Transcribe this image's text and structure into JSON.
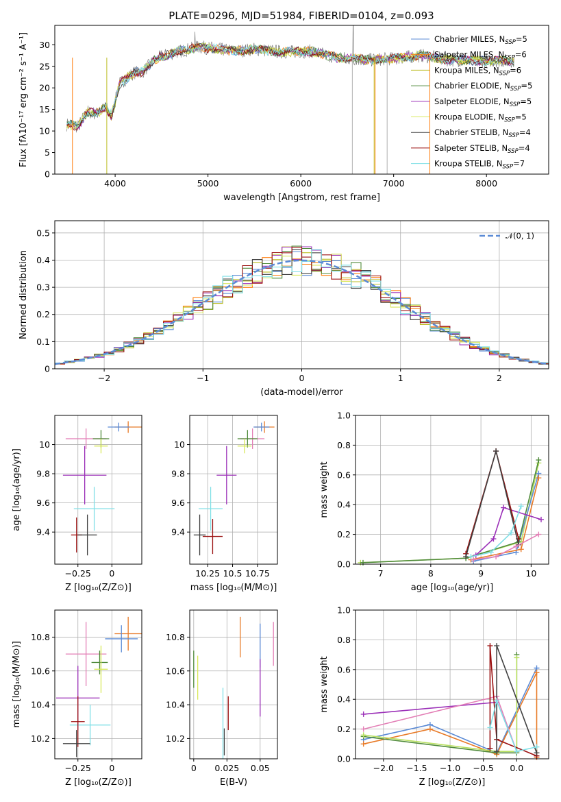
{
  "title": "PLATE=0296, MJD=51984, FIBERID=0104, z=0.093",
  "colors": {
    "grey": "#7f7f7f",
    "orange": "#ff7f0e",
    "olive": "#bcbd22",
    "blue": "#5b8bd6",
    "purple": "#9b30b8",
    "yellow": "#d8e85a",
    "dark": "#404040",
    "red": "#9b1111",
    "cyan": "#7fdfe6",
    "green": "#4f8a3a",
    "pink": "#e37fb6",
    "orange2": "#e87a27",
    "lightgreen": "#b8e060"
  },
  "chart_data": [
    {
      "id": "spectrum",
      "type": "line",
      "title": "PLATE=0296, MJD=51984, FIBERID=0104, z=0.093",
      "xlabel": "wavelength [Angstrom, rest frame]",
      "ylabel": "Flux [fλ10⁻¹⁷ erg cm⁻² s⁻¹ A⁻¹]",
      "xlim": [
        3350,
        8670
      ],
      "ylim": [
        0,
        34.5
      ],
      "xticks": [
        4000,
        5000,
        6000,
        7000,
        8000
      ],
      "yticks": [
        0,
        5,
        10,
        15,
        20,
        25,
        30
      ],
      "grid": false,
      "legend": "top-right",
      "spectrum_knots": [
        [
          3500,
          11.5
        ],
        [
          3600,
          11
        ],
        [
          3700,
          14.5
        ],
        [
          3800,
          14
        ],
        [
          3900,
          15.5
        ],
        [
          3960,
          13.5
        ],
        [
          4050,
          21
        ],
        [
          4200,
          23.5
        ],
        [
          4300,
          23.8
        ],
        [
          4400,
          26
        ],
        [
          4500,
          27.3
        ],
        [
          4700,
          28.5
        ],
        [
          4900,
          29.5
        ],
        [
          5100,
          29
        ],
        [
          5300,
          28.5
        ],
        [
          5500,
          29
        ],
        [
          5800,
          28.3
        ],
        [
          6100,
          28.5
        ],
        [
          6400,
          27
        ],
        [
          6700,
          26.5
        ],
        [
          7000,
          26.8
        ],
        [
          7300,
          27.5
        ],
        [
          7600,
          26.5
        ],
        [
          8000,
          26.3
        ],
        [
          8300,
          26.3
        ]
      ],
      "series": [
        {
          "name": "Chabrier MILES, N",
          "sub": "SSP",
          "suffix": "=5",
          "color": "#5b8bd6"
        },
        {
          "name": "Salpeter MILES, N",
          "sub": "SSP",
          "suffix": "=6",
          "color": "#ff7f0e"
        },
        {
          "name": "Kroupa MILES, N",
          "sub": "SSP",
          "suffix": "=6",
          "color": "#bcbd22"
        },
        {
          "name": "Chabrier ELODIE, N",
          "sub": "SSP",
          "suffix": "=5",
          "color": "#4f8a3a"
        },
        {
          "name": "Salpeter ELODIE, N",
          "sub": "SSP",
          "suffix": "=5",
          "color": "#9b30b8"
        },
        {
          "name": "Kroupa ELODIE, N",
          "sub": "SSP",
          "suffix": "=5",
          "color": "#d8e85a"
        },
        {
          "name": "Chabrier STELIB, N",
          "sub": "SSP",
          "suffix": "=4",
          "color": "#404040"
        },
        {
          "name": "Salpeter STELIB, N",
          "sub": "SSP",
          "suffix": "=4",
          "color": "#9b1111"
        },
        {
          "name": "Kroupa STELIB, N",
          "sub": "SSP",
          "suffix": "=7",
          "color": "#7fdfe6"
        }
      ]
    },
    {
      "id": "residuals",
      "type": "histogram",
      "xlabel": "(data-model)/error",
      "ylabel": "Normed distribution",
      "xlim": [
        -2.5,
        2.5
      ],
      "ylim": [
        0,
        0.545
      ],
      "xticks": [
        -2,
        -1,
        0,
        1,
        2
      ],
      "yticks": [
        0.0,
        0.1,
        0.2,
        0.3,
        0.4,
        0.5
      ],
      "grid": true,
      "legend": "top-right",
      "gauss_label": "𝒩(0, 1)",
      "bin_width": 0.1
    },
    {
      "id": "age_vs_Z",
      "type": "errorbar",
      "xlabel": "Z [log₁₀(Z/Z⊙)]",
      "ylabel": "age  [log₁₀(age/yr)]",
      "xlim": [
        -0.42,
        0.22
      ],
      "ylim": [
        9.18,
        10.2
      ],
      "xticks": [
        -0.25,
        0.0
      ],
      "yticks": [
        9.4,
        9.6,
        9.8,
        10.0
      ],
      "points": [
        {
          "x": 0.12,
          "y": 10.12,
          "xerr": 0.1,
          "yerr": 0.04,
          "color": "#e87a27"
        },
        {
          "x": 0.05,
          "y": 10.12,
          "xerr": 0.08,
          "yerr": 0.03,
          "color": "#5b8bd6"
        },
        {
          "x": -0.19,
          "y": 10.04,
          "xerr": 0.15,
          "yerr": 0.07,
          "color": "#e37fb6"
        },
        {
          "x": -0.08,
          "y": 10.04,
          "xerr": 0.06,
          "yerr": 0.06,
          "color": "#4f8a3a"
        },
        {
          "x": -0.08,
          "y": 9.99,
          "xerr": 0.05,
          "yerr": 0.05,
          "color": "#d8e85a"
        },
        {
          "x": -0.2,
          "y": 9.79,
          "xerr": 0.16,
          "yerr": 0.2,
          "color": "#9b30b8"
        },
        {
          "x": -0.13,
          "y": 9.56,
          "xerr": 0.15,
          "yerr": 0.15,
          "color": "#7fdfe6"
        },
        {
          "x": -0.26,
          "y": 9.38,
          "xerr": 0.04,
          "yerr": 0.12,
          "color": "#9b1111"
        },
        {
          "x": -0.18,
          "y": 9.38,
          "xerr": 0.07,
          "yerr": 0.14,
          "color": "#404040"
        }
      ]
    },
    {
      "id": "age_vs_mass",
      "type": "errorbar",
      "xlabel": "mass [log₁₀(M/M⊙)]",
      "ylabel": "",
      "xlim": [
        10.07,
        10.95
      ],
      "ylim": [
        9.18,
        10.2
      ],
      "xticks": [
        10.25,
        10.5,
        10.75
      ],
      "yticks": [
        9.4,
        9.6,
        9.8,
        10.0
      ],
      "points": [
        {
          "x": 10.82,
          "y": 10.12,
          "xerr": 0.1,
          "yerr": 0.04,
          "color": "#e87a27"
        },
        {
          "x": 10.79,
          "y": 10.12,
          "xerr": 0.08,
          "yerr": 0.03,
          "color": "#5b8bd6"
        },
        {
          "x": 10.7,
          "y": 10.04,
          "xerr": 0.12,
          "yerr": 0.07,
          "color": "#e37fb6"
        },
        {
          "x": 10.65,
          "y": 10.04,
          "xerr": 0.1,
          "yerr": 0.06,
          "color": "#4f8a3a"
        },
        {
          "x": 10.62,
          "y": 9.99,
          "xerr": 0.07,
          "yerr": 0.05,
          "color": "#d8e85a"
        },
        {
          "x": 10.44,
          "y": 9.79,
          "xerr": 0.1,
          "yerr": 0.2,
          "color": "#9b30b8"
        },
        {
          "x": 10.28,
          "y": 9.56,
          "xerr": 0.12,
          "yerr": 0.15,
          "color": "#7fdfe6"
        },
        {
          "x": 10.3,
          "y": 9.37,
          "xerr": 0.1,
          "yerr": 0.12,
          "color": "#9b1111"
        },
        {
          "x": 10.17,
          "y": 9.38,
          "xerr": 0.06,
          "yerr": 0.14,
          "color": "#404040"
        }
      ]
    },
    {
      "id": "weight_vs_age",
      "type": "line",
      "xlabel": "age  [log₁₀(age/yr)]",
      "ylabel": "mass weight",
      "xlim": [
        6.5,
        10.35
      ],
      "ylim": [
        0,
        1.0
      ],
      "xticks": [
        7,
        8,
        9,
        10
      ],
      "yticks": [
        0.0,
        0.2,
        0.4,
        0.6,
        0.8,
        1.0
      ],
      "grid": true,
      "series": [
        {
          "color": "#b8e060",
          "x": [
            6.6,
            8.7,
            9.8,
            10.15
          ],
          "y": [
            0.01,
            0.04,
            0.15,
            0.68
          ]
        },
        {
          "color": "#5b8bd6",
          "x": [
            8.85,
            9.7,
            10.15
          ],
          "y": [
            0.02,
            0.08,
            0.61
          ]
        },
        {
          "color": "#e87a27",
          "x": [
            8.8,
            9.8,
            10.15
          ],
          "y": [
            0.03,
            0.1,
            0.58
          ]
        },
        {
          "color": "#4f8a3a",
          "x": [
            6.65,
            8.7,
            9.75,
            10.15
          ],
          "y": [
            0.01,
            0.04,
            0.15,
            0.7
          ]
        },
        {
          "color": "#9b30b8",
          "x": [
            8.9,
            9.25,
            9.45,
            10.2
          ],
          "y": [
            0.06,
            0.17,
            0.38,
            0.3
          ]
        },
        {
          "color": "#9b1111",
          "x": [
            8.7,
            9.3,
            9.75
          ],
          "y": [
            0.07,
            0.76,
            0.17
          ]
        },
        {
          "color": "#404040",
          "x": [
            8.7,
            9.3,
            9.75
          ],
          "y": [
            0.05,
            0.76,
            0.13
          ]
        },
        {
          "color": "#7fdfe6",
          "x": [
            8.8,
            9.2,
            9.6,
            9.8
          ],
          "y": [
            0.05,
            0.08,
            0.21,
            0.39
          ]
        },
        {
          "color": "#e37fb6",
          "x": [
            8.85,
            9.3,
            9.7,
            10.15
          ],
          "y": [
            0.03,
            0.05,
            0.12,
            0.2
          ]
        }
      ]
    },
    {
      "id": "mass_vs_Z",
      "type": "errorbar",
      "xlabel": "Z [log₁₀(Z/Z⊙)]",
      "ylabel": "mass [log₁₀(M/M⊙)]",
      "xlim": [
        -0.42,
        0.22
      ],
      "ylim": [
        10.08,
        10.96
      ],
      "xticks": [
        -0.25,
        0.0
      ],
      "yticks": [
        10.2,
        10.4,
        10.6,
        10.8
      ],
      "points": [
        {
          "x": 0.12,
          "y": 10.82,
          "xerr": 0.1,
          "yerr": 0.1,
          "color": "#e87a27"
        },
        {
          "x": 0.07,
          "y": 10.79,
          "xerr": 0.12,
          "yerr": 0.08,
          "color": "#5b8bd6"
        },
        {
          "x": -0.19,
          "y": 10.7,
          "xerr": 0.15,
          "yerr": 0.19,
          "color": "#e37fb6"
        },
        {
          "x": -0.09,
          "y": 10.65,
          "xerr": 0.06,
          "yerr": 0.07,
          "color": "#4f8a3a"
        },
        {
          "x": -0.08,
          "y": 10.61,
          "xerr": 0.05,
          "yerr": 0.14,
          "color": "#d8e85a"
        },
        {
          "x": -0.25,
          "y": 10.44,
          "xerr": 0.16,
          "yerr": 0.19,
          "color": "#9b30b8"
        },
        {
          "x": -0.16,
          "y": 10.28,
          "xerr": 0.15,
          "yerr": 0.12,
          "color": "#7fdfe6"
        },
        {
          "x": -0.25,
          "y": 10.3,
          "xerr": 0.05,
          "yerr": 0.15,
          "color": "#9b1111"
        },
        {
          "x": -0.26,
          "y": 10.17,
          "xerr": 0.1,
          "yerr": 0.08,
          "color": "#404040"
        }
      ]
    },
    {
      "id": "mass_vs_ebv",
      "type": "errorbar",
      "xlabel": "E(B-V)",
      "ylabel": "",
      "xlim": [
        -0.003,
        0.063
      ],
      "ylim": [
        10.08,
        10.96
      ],
      "xticks": [
        0.0,
        0.025,
        0.05
      ],
      "yticks": [
        10.2,
        10.4,
        10.6,
        10.8
      ],
      "points": [
        {
          "x": 0.035,
          "y": 10.8,
          "xerr": 0,
          "yerr": 0.12,
          "color": "#e87a27"
        },
        {
          "x": 0.05,
          "y": 10.75,
          "xerr": 0,
          "yerr": 0.13,
          "color": "#5b8bd6"
        },
        {
          "x": 0.06,
          "y": 10.76,
          "xerr": 0,
          "yerr": 0.13,
          "color": "#e37fb6"
        },
        {
          "x": 0.0,
          "y": 10.61,
          "xerr": 0,
          "yerr": 0.11,
          "color": "#4f8a3a"
        },
        {
          "x": 0.003,
          "y": 10.56,
          "xerr": 0,
          "yerr": 0.13,
          "color": "#d8e85a"
        },
        {
          "x": 0.05,
          "y": 10.5,
          "xerr": 0,
          "yerr": 0.17,
          "color": "#9b30b8"
        },
        {
          "x": 0.022,
          "y": 10.29,
          "xerr": 0,
          "yerr": 0.21,
          "color": "#7fdfe6"
        },
        {
          "x": 0.026,
          "y": 10.35,
          "xerr": 0,
          "yerr": 0.1,
          "color": "#9b1111"
        },
        {
          "x": 0.023,
          "y": 10.18,
          "xerr": 0,
          "yerr": 0.08,
          "color": "#404040"
        }
      ]
    },
    {
      "id": "weight_vs_Z",
      "type": "line",
      "xlabel": "Z [log₁₀(Z/Z⊙)]",
      "ylabel": "mass weight",
      "xlim": [
        -2.42,
        0.48
      ],
      "ylim": [
        0,
        1.0
      ],
      "xticks": [
        -2.0,
        -1.5,
        -1.0,
        -0.5,
        0.0
      ],
      "yticks": [
        0.0,
        0.2,
        0.4,
        0.6,
        0.8,
        1.0
      ],
      "grid": true,
      "series": [
        {
          "color": "#5b8bd6",
          "x": [
            -2.3,
            -1.3,
            -0.3,
            0.3
          ],
          "y": [
            0.13,
            0.23,
            0.04,
            0.61
          ]
        },
        {
          "color": "#e87a27",
          "x": [
            -2.3,
            -1.3,
            -0.3,
            0.3,
            0.3
          ],
          "y": [
            0.1,
            0.2,
            0.03,
            0.58,
            0.01
          ]
        },
        {
          "color": "#4f8a3a",
          "x": [
            -2.3,
            -0.3,
            0.0,
            0.0
          ],
          "y": [
            0.15,
            0.04,
            0.04,
            0.7
          ]
        },
        {
          "color": "#b8e060",
          "x": [
            -2.3,
            -0.3,
            0.0,
            0.0
          ],
          "y": [
            0.16,
            0.05,
            0.05,
            0.68
          ]
        },
        {
          "color": "#9b30b8",
          "x": [
            -2.3,
            -0.3
          ],
          "y": [
            0.3,
            0.38
          ]
        },
        {
          "color": "#e37fb6",
          "x": [
            -2.3,
            -0.3,
            0.0
          ],
          "y": [
            0.2,
            0.42,
            0.05
          ]
        },
        {
          "color": "#9b1111",
          "x": [
            -0.4,
            -0.4,
            -0.3,
            0.3
          ],
          "y": [
            0.07,
            0.76,
            0.13,
            0.02
          ]
        },
        {
          "color": "#404040",
          "x": [
            -0.3,
            -0.3,
            0.3
          ],
          "y": [
            0.05,
            0.76,
            0.04
          ]
        },
        {
          "color": "#7fdfe6",
          "x": [
            -0.4,
            -0.3,
            0.0,
            0.3
          ],
          "y": [
            0.21,
            0.39,
            0.05,
            0.08
          ]
        }
      ]
    }
  ]
}
